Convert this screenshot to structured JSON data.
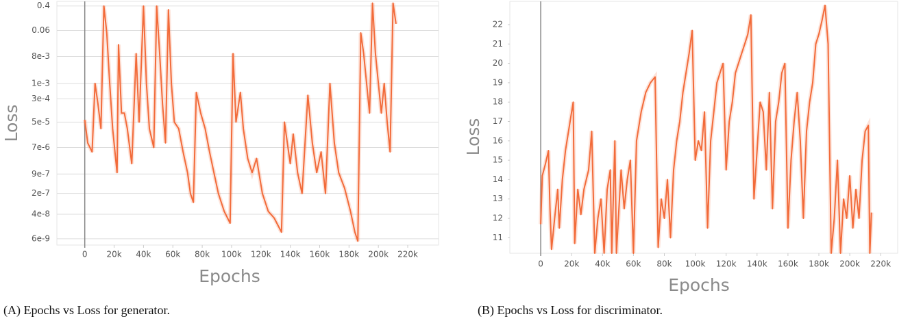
{
  "chart_data": [
    {
      "type": "line",
      "caption": "(A) Epochs vs Loss for generator.",
      "xlabel": "Epochs",
      "ylabel": "Loss",
      "log_y": true,
      "grid": true,
      "xlim": [
        -19000,
        241000
      ],
      "ylim": [
        3.7e-09,
        0.57
      ],
      "xticks": [
        0,
        {
          "value": 20000,
          "label": "20k"
        },
        {
          "value": 40000,
          "label": "40k"
        },
        {
          "value": 60000,
          "label": "60k"
        },
        {
          "value": 80000,
          "label": "80k"
        },
        {
          "value": 100000,
          "label": "100k"
        },
        {
          "value": 120000,
          "label": "120k"
        },
        {
          "value": 140000,
          "label": "140k"
        },
        {
          "value": 160000,
          "label": "160k"
        },
        {
          "value": 180000,
          "label": "180k"
        },
        {
          "value": 200000,
          "label": "200k"
        },
        {
          "value": 220000,
          "label": "220k"
        }
      ],
      "yticks": [
        0.4,
        0.06,
        {
          "value": 0.008,
          "label": "8e-3"
        },
        {
          "value": 0.001,
          "label": "1e-3"
        },
        {
          "value": 0.0003,
          "label": "3e-4"
        },
        {
          "value": 5e-05,
          "label": "5e-5"
        },
        {
          "value": 7e-06,
          "label": "7e-6"
        },
        {
          "value": 9e-07,
          "label": "9e-7"
        },
        {
          "value": 2e-07,
          "label": "2e-7"
        },
        {
          "value": 4e-08,
          "label": "4e-8"
        },
        {
          "value": 6e-09,
          "label": "6e-9"
        }
      ],
      "series": [
        {
          "color": "#f26b3a",
          "x": [
            0,
            2000,
            5000,
            7000,
            9000,
            11000,
            13000,
            15000,
            17000,
            19000,
            21000,
            22000,
            23000,
            25000,
            27000,
            29000,
            32000,
            35000,
            37000,
            40000,
            42000,
            44000,
            47000,
            49000,
            51000,
            53000,
            55000,
            57000,
            59000,
            61000,
            64000,
            67000,
            70000,
            72000,
            74000,
            76000,
            79000,
            82000,
            85000,
            88000,
            91000,
            95000,
            99000,
            101000,
            103000,
            106000,
            108000,
            111000,
            114000,
            117000,
            121000,
            125000,
            129000,
            134000,
            136000,
            138000,
            140000,
            142000,
            145000,
            148000,
            152000,
            155000,
            158000,
            161000,
            164000,
            167000,
            170000,
            173000,
            177000,
            181000,
            184000,
            186000,
            188000,
            190000,
            192000,
            194000,
            196000,
            198000,
            200000,
            202000,
            204000,
            206000,
            208000,
            210000,
            212000
          ],
          "values": [
            6e-05,
            1e-05,
            5e-06,
            0.001,
            0.0002,
            3e-05,
            0.4,
            0.05,
            0.001,
            3e-05,
            3e-06,
            1e-06,
            0.02,
            0.0001,
            0.0001,
            3e-05,
            2e-06,
            0.01,
            5e-05,
            0.4,
            0.001,
            3e-05,
            7e-06,
            0.4,
            0.01,
            0.0002,
            1e-05,
            0.3,
            0.001,
            5e-05,
            3e-05,
            5e-06,
            1e-06,
            2e-07,
            1e-07,
            0.0005,
            0.0001,
            3e-05,
            5e-06,
            1e-06,
            2e-07,
            5e-08,
            2e-08,
            0.01,
            5e-05,
            0.0005,
            3e-05,
            3e-06,
            1e-06,
            3e-06,
            2e-07,
            5e-08,
            3e-08,
            1e-08,
            5e-05,
            1e-05,
            2e-06,
            2e-05,
            1e-06,
            2e-07,
            0.0004,
            1e-05,
            1e-06,
            5e-06,
            2e-07,
            0.001,
            1e-05,
            1e-06,
            3e-07,
            5e-08,
            1e-08,
            5e-09,
            0.05,
            0.01,
            0.001,
            0.0001,
            0.5,
            0.01,
            0.001,
            0.0001,
            0.001,
            5e-05,
            5e-06,
            0.5,
            0.1
          ]
        }
      ]
    },
    {
      "type": "line",
      "caption": "(B) Epochs vs Loss for discriminator.",
      "xlabel": "Epochs",
      "ylabel": "Loss",
      "log_y": false,
      "grid": false,
      "xlim": [
        -20000,
        231000
      ],
      "ylim": [
        10.2,
        23.2
      ],
      "xticks": [
        0,
        {
          "value": 20000,
          "label": "20k"
        },
        {
          "value": 40000,
          "label": "40k"
        },
        {
          "value": 60000,
          "label": "60k"
        },
        {
          "value": 80000,
          "label": "80k"
        },
        {
          "value": 100000,
          "label": "100k"
        },
        {
          "value": 120000,
          "label": "120k"
        },
        {
          "value": 140000,
          "label": "140k"
        },
        {
          "value": 160000,
          "label": "160k"
        },
        {
          "value": 180000,
          "label": "180k"
        },
        {
          "value": 200000,
          "label": "200k"
        },
        {
          "value": 220000,
          "label": "220k"
        }
      ],
      "yticks": [
        11,
        12,
        13,
        14,
        15,
        16,
        17,
        18,
        19,
        20,
        21,
        22
      ],
      "series": [
        {
          "color": "#f26b3a",
          "x": [
            0,
            1000,
            3000,
            5000,
            6000,
            7000,
            9000,
            11000,
            12000,
            14000,
            16000,
            18000,
            20000,
            21000,
            22000,
            24000,
            26000,
            28000,
            31000,
            33000,
            35000,
            37000,
            39000,
            41000,
            43000,
            45000,
            46000,
            48000,
            49000,
            52000,
            54000,
            56000,
            58000,
            60000,
            62000,
            65000,
            68000,
            71000,
            74000,
            76000,
            78000,
            80000,
            82000,
            84000,
            86000,
            88000,
            90000,
            92000,
            94000,
            96000,
            98000,
            100000,
            102000,
            104000,
            106000,
            108000,
            110000,
            112000,
            114000,
            116000,
            118000,
            120000,
            122000,
            124000,
            126000,
            128000,
            130000,
            132000,
            134000,
            136000,
            138000,
            140000,
            142000,
            144000,
            146000,
            148000,
            150000,
            152000,
            154000,
            156000,
            158000,
            160000,
            162000,
            164000,
            166000,
            168000,
            170000,
            172000,
            174000,
            176000,
            178000,
            180000,
            182000,
            184000,
            186000,
            188000,
            190000,
            192000,
            194000,
            196000,
            198000,
            200000,
            202000,
            204000,
            206000,
            208000,
            210000,
            212000,
            213000,
            214000
          ],
          "values": [
            11.7,
            14.2,
            14.8,
            15.5,
            12.5,
            10.4,
            12,
            13.5,
            11.5,
            14,
            15.5,
            16.5,
            17.5,
            18,
            10.7,
            13.5,
            12.2,
            13.5,
            14.5,
            16.5,
            10.2,
            12,
            13,
            10.2,
            13.5,
            14.5,
            10.2,
            16,
            10.2,
            14.5,
            12.5,
            14,
            15,
            10.2,
            16,
            17.5,
            18.5,
            19,
            19.3,
            10.5,
            13,
            12,
            14,
            11,
            14.5,
            16,
            17,
            18.5,
            19.5,
            20.5,
            21.7,
            15,
            16,
            15.5,
            17.5,
            11.5,
            16,
            17.5,
            19,
            19.5,
            20,
            14.5,
            17,
            18,
            19.5,
            20,
            20.5,
            21,
            21.5,
            22.5,
            13,
            15.5,
            18,
            17.5,
            14.5,
            18.5,
            12.5,
            17,
            18,
            19.5,
            20,
            11.5,
            15,
            17,
            18.5,
            16,
            12,
            16.5,
            18,
            19,
            21,
            21.5,
            22.2,
            23,
            21,
            10.2,
            12,
            15,
            10.2,
            13,
            12,
            14.2,
            11.5,
            13.5,
            12,
            15,
            16.5,
            16.8,
            10.2,
            12.3
          ]
        }
      ]
    }
  ]
}
